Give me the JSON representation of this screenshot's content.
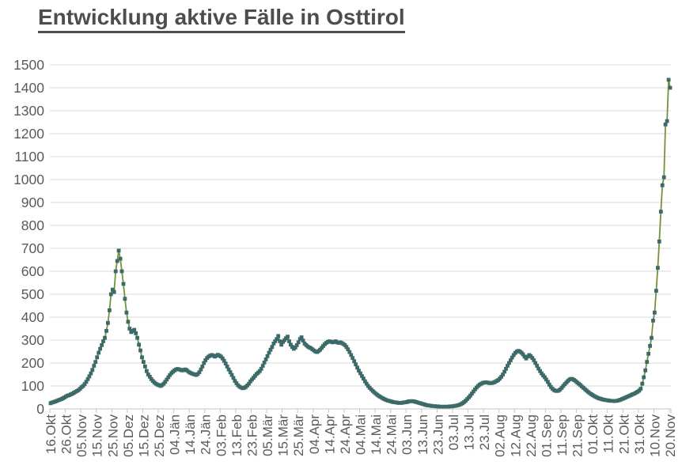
{
  "header": {
    "title": "Entwicklung aktive Fälle in Osttirol"
  },
  "chart_data": {
    "type": "line",
    "title": "Entwicklung aktive Fälle in Osttirol",
    "marker": "square",
    "grid": "horizontal",
    "legend": "none",
    "ylim": [
      0,
      1500
    ],
    "y_tick_step": 100,
    "y_tick_labels": [
      "0",
      "100",
      "200",
      "300",
      "400",
      "500",
      "600",
      "700",
      "800",
      "900",
      "1000",
      "1100",
      "1200",
      "1300",
      "1400",
      "1500"
    ],
    "x_tick_labels": [
      "16.Okt",
      "26.Okt",
      "05.Nov",
      "15.Nov",
      "25.Nov",
      "05.Dez",
      "15.Dez",
      "25.Dez",
      "04.Jän",
      "14.Jän",
      "24.Jän",
      "03.Feb",
      "13.Feb",
      "23.Feb",
      "05.Mär",
      "15.Mär",
      "25.Mär",
      "04.Apr",
      "14.Apr",
      "24.Apr",
      "04.Mai",
      "14.Mai",
      "24.Mai",
      "03.Jun",
      "13.Jun",
      "23.Jun",
      "03.Jul",
      "13.Jul",
      "23.Jul",
      "02.Aug",
      "12.Aug",
      "22.Aug",
      "01.Sep",
      "11.Sep",
      "21.Sep",
      "01.Okt",
      "11.Okt",
      "21.Okt",
      "31.Okt",
      "10.Nov",
      "20.Nov"
    ],
    "x_tick_interval_points": 10,
    "series": [
      {
        "values": [
          25,
          28,
          30,
          32,
          35,
          38,
          40,
          43,
          46,
          50,
          55,
          58,
          60,
          63,
          66,
          70,
          74,
          78,
          82,
          88,
          95,
          100,
          108,
          118,
          130,
          142,
          155,
          170,
          188,
          205,
          225,
          245,
          262,
          278,
          295,
          310,
          340,
          375,
          430,
          500,
          520,
          510,
          600,
          645,
          690,
          655,
          600,
          545,
          480,
          420,
          380,
          350,
          335,
          340,
          345,
          330,
          310,
          280,
          255,
          225,
          205,
          185,
          165,
          150,
          140,
          130,
          122,
          115,
          110,
          106,
          103,
          100,
          104,
          110,
          118,
          128,
          138,
          148,
          156,
          162,
          168,
          172,
          174,
          172,
          170,
          168,
          170,
          172,
          168,
          162,
          158,
          155,
          152,
          150,
          148,
          152,
          160,
          172,
          185,
          200,
          212,
          222,
          228,
          232,
          235,
          232,
          228,
          232,
          236,
          232,
          228,
          220,
          210,
          198,
          185,
          172,
          160,
          148,
          135,
          122,
          112,
          103,
          97,
          93,
          90,
          92,
          96,
          102,
          110,
          120,
          128,
          136,
          144,
          152,
          158,
          165,
          175,
          188,
          202,
          216,
          230,
          245,
          258,
          270,
          285,
          295,
          305,
          318,
          295,
          280,
          292,
          300,
          308,
          315,
          295,
          280,
          270,
          262,
          268,
          278,
          290,
          305,
          312,
          298,
          285,
          278,
          272,
          268,
          265,
          260,
          255,
          250,
          248,
          252,
          258,
          266,
          274,
          282,
          288,
          292,
          295,
          293,
          290,
          292,
          295,
          290,
          288,
          290,
          287,
          283,
          278,
          270,
          260,
          248,
          235,
          222,
          208,
          194,
          180,
          167,
          155,
          143,
          132,
          120,
          110,
          100,
          92,
          85,
          78,
          72,
          66,
          61,
          56,
          52,
          48,
          44,
          41,
          38,
          36,
          34,
          32,
          30,
          29,
          28,
          27,
          26,
          26,
          27,
          28,
          29,
          30,
          32,
          33,
          34,
          33,
          32,
          30,
          28,
          26,
          24,
          22,
          20,
          18,
          16,
          15,
          14,
          13,
          12,
          12,
          11,
          11,
          10,
          10,
          10,
          10,
          10,
          10,
          10,
          11,
          11,
          12,
          13,
          14,
          16,
          18,
          21,
          25,
          30,
          36,
          43,
          50,
          58,
          67,
          76,
          85,
          93,
          100,
          106,
          110,
          113,
          115,
          116,
          115,
          113,
          112,
          113,
          115,
          118,
          122,
          126,
          132,
          140,
          150,
          162,
          175,
          188,
          200,
          212,
          224,
          235,
          244,
          250,
          253,
          250,
          245,
          238,
          228,
          220,
          228,
          235,
          230,
          222,
          212,
          200,
          188,
          176,
          165,
          155,
          146,
          138,
          128,
          118,
          106,
          96,
          88,
          82,
          79,
          78,
          80,
          85,
          92,
          100,
          108,
          115,
          122,
          128,
          131,
          130,
          126,
          121,
          115,
          110,
          104,
          98,
          92,
          86,
          80,
          74,
          69,
          64,
          60,
          56,
          52,
          49,
          46,
          44,
          42,
          40,
          39,
          38,
          37,
          36,
          35,
          35,
          34,
          35,
          36,
          38,
          40,
          43,
          46,
          49,
          52,
          55,
          58,
          61,
          64,
          67,
          71,
          75,
          80,
          88,
          110,
          138,
          168,
          205,
          240,
          275,
          310,
          385,
          420,
          515,
          615,
          730,
          860,
          975,
          1010,
          1240,
          1255,
          1435,
          1400
        ]
      }
    ],
    "colors": {
      "line": "#75923b",
      "marker": "#3c6a68",
      "grid": "#d9d9d9",
      "axis": "#c6c6c6",
      "axis_text": "#5a5a5a",
      "title_text": "#4d4d4d",
      "background": "#ffffff"
    }
  }
}
